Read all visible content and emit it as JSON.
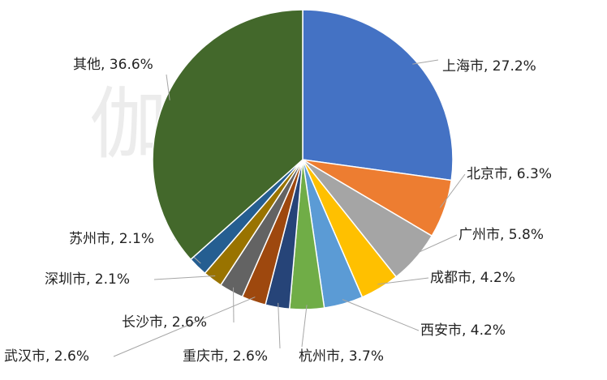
{
  "chart_data": {
    "type": "pie",
    "watermark": "伽马数据",
    "categories": [
      "上海市",
      "北京市",
      "广州市",
      "成都市",
      "西安市",
      "杭州市",
      "重庆市",
      "武汉市",
      "长沙市",
      "深圳市",
      "苏州市",
      "其他"
    ],
    "values": [
      27.2,
      6.3,
      5.8,
      4.2,
      4.2,
      3.7,
      2.6,
      2.6,
      2.6,
      2.1,
      2.1,
      36.6
    ],
    "value_labels": [
      "上海市, 27.2%",
      "北京市, 6.3%",
      "广州市, 5.8%",
      "成都市, 4.2%",
      "西安市, 4.2%",
      "杭州市, 3.7%",
      "重庆市, 2.6%",
      "武汉市, 2.6%",
      "长沙市, 2.6%",
      "深圳市, 2.1%",
      "苏州市, 2.1%",
      "其他, 36.6%"
    ],
    "colors": [
      "#4472c4",
      "#ed7d31",
      "#a5a5a5",
      "#ffc000",
      "#5b9bd5",
      "#70ad47",
      "#264478",
      "#9e480e",
      "#636363",
      "#997300",
      "#255e91",
      "#43682b"
    ]
  }
}
